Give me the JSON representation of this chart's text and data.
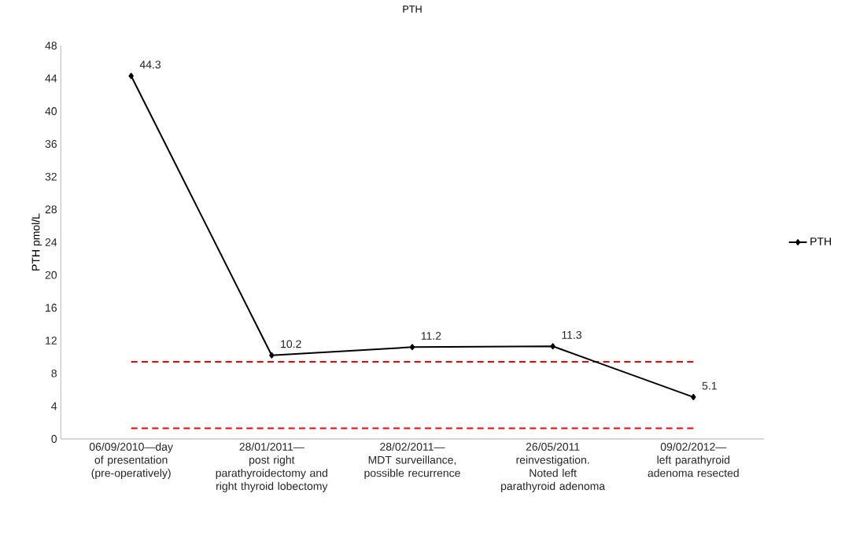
{
  "chart_data": {
    "type": "line",
    "title": "PTH",
    "ylabel": "PTH pmol/L",
    "categories": [
      "06/09/2010—day of presentation (pre-operatively)",
      "28/01/2011— post right parathyroidectomy and right thyroid lobectomy",
      "28/02/2011— MDT surveillance, possible recurrence",
      "26/05/2011 reinvestigation. Noted left parathyroid adenoma",
      "09/02/2012— left parathyroid adenoma resected"
    ],
    "series": [
      {
        "name": "PTH",
        "color": "#000000",
        "values": [
          44.3,
          10.2,
          11.2,
          11.3,
          5.1
        ]
      }
    ],
    "ylim": [
      0,
      48
    ],
    "yticks": [
      0,
      4,
      8,
      12,
      16,
      20,
      24,
      28,
      32,
      36,
      40,
      44,
      48
    ],
    "data_labels": true,
    "legend": "right",
    "marker": "diamond",
    "ref_lines": [
      {
        "axis": "y",
        "value": 9.4,
        "color": "#ff0000",
        "line_style": "dashed"
      },
      {
        "axis": "y",
        "value": 1.3,
        "color": "#ff0000",
        "line_style": "dashed"
      }
    ]
  }
}
